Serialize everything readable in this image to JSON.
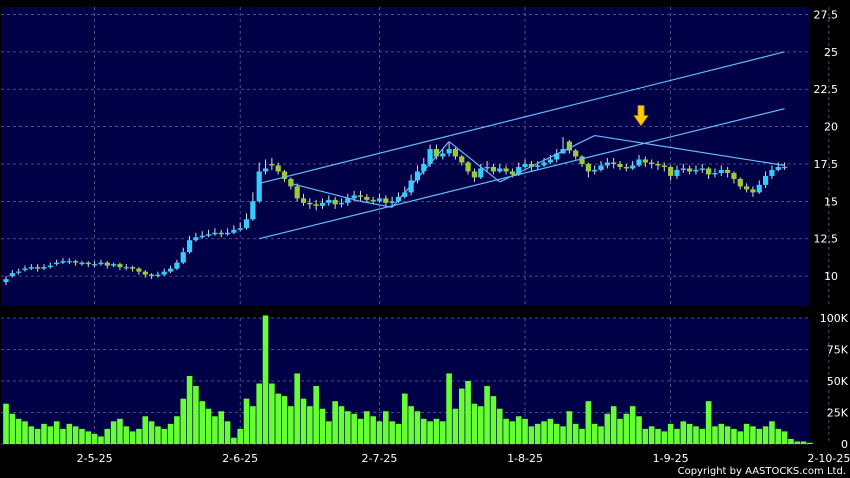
{
  "copyright": "Copyright by AASTOCKS.com Ltd.",
  "colors": {
    "background": "#000000",
    "panel": "#000046",
    "grid": "#5a6a9a",
    "up_candle": "#33ccff",
    "down_candle": "#99cc33",
    "volume": "#66ff33",
    "trendline": "#66bbff",
    "marker": "#ffcc00"
  },
  "chart_data": [
    {
      "type": "candlestick",
      "y_axis_side": "right",
      "ylim": [
        8,
        28
      ],
      "y_ticks": [
        10,
        12.5,
        15,
        17.5,
        20,
        22.5,
        25,
        27.5
      ],
      "y_tick_labels": [
        "10",
        "12.5",
        "15",
        "17.5",
        "20",
        "22.5",
        "25",
        "27.5"
      ],
      "x_tick_labels": [
        "2-5-25",
        "2-6-25",
        "2-7-25",
        "1-8-25",
        "1-9-25",
        "2-10-25"
      ],
      "x_tick_index": [
        14,
        37,
        59,
        82,
        105,
        130
      ],
      "grid": true,
      "closes": [
        9.8,
        10.2,
        10.3,
        10.5,
        10.6,
        10.5,
        10.6,
        10.7,
        10.9,
        11.0,
        11.0,
        10.9,
        10.9,
        10.8,
        10.8,
        10.9,
        10.7,
        10.8,
        10.6,
        10.6,
        10.5,
        10.3,
        10.1,
        10.0,
        10.1,
        10.3,
        10.5,
        10.9,
        11.6,
        12.4,
        12.6,
        12.7,
        12.8,
        12.9,
        12.8,
        12.9,
        13.1,
        13.2,
        13.8,
        15.0,
        17.0,
        17.2,
        17.4,
        17.0,
        16.5,
        16.0,
        15.2,
        14.9,
        14.8,
        14.7,
        14.9,
        15.1,
        14.8,
        14.9,
        15.2,
        15.4,
        15.3,
        15.1,
        15.0,
        15.2,
        14.9,
        15.0,
        15.3,
        15.6,
        16.4,
        17.0,
        17.5,
        18.5,
        18.0,
        18.2,
        18.5,
        18.0,
        17.6,
        17.0,
        16.6,
        17.2,
        17.3,
        17.0,
        17.2,
        17.0,
        16.8,
        17.3,
        17.5,
        17.3,
        17.4,
        17.6,
        17.8,
        18.2,
        18.5,
        18.4,
        18.0,
        17.5,
        17.0,
        17.1,
        17.4,
        17.6,
        17.5,
        17.3,
        17.2,
        17.4,
        17.8,
        17.6,
        17.5,
        17.4,
        17.3,
        16.7,
        17.1,
        17.2,
        17.0,
        17.1,
        17.2,
        16.8,
        16.9,
        17.1,
        16.9,
        16.5,
        16.0,
        15.8,
        15.6,
        16.1,
        16.7,
        17.1,
        17.3,
        17.3
      ],
      "opens": [
        9.6,
        10.0,
        10.3,
        10.4,
        10.5,
        10.6,
        10.5,
        10.6,
        10.8,
        10.9,
        11.0,
        11.0,
        10.8,
        10.9,
        10.8,
        10.8,
        10.9,
        10.7,
        10.8,
        10.6,
        10.6,
        10.5,
        10.3,
        10.1,
        10.0,
        10.1,
        10.3,
        10.5,
        10.9,
        11.6,
        12.4,
        12.6,
        12.7,
        12.8,
        12.9,
        12.8,
        12.9,
        13.1,
        13.2,
        13.8,
        15.0,
        17.0,
        17.5,
        17.4,
        17.0,
        16.5,
        16.0,
        15.2,
        14.9,
        14.8,
        14.7,
        14.9,
        15.1,
        14.8,
        14.9,
        15.2,
        15.4,
        15.3,
        15.1,
        15.0,
        15.2,
        14.9,
        15.0,
        15.3,
        15.6,
        16.4,
        17.0,
        17.5,
        18.5,
        18.0,
        18.2,
        18.5,
        18.0,
        17.6,
        17.0,
        16.6,
        17.2,
        17.3,
        17.0,
        17.2,
        17.0,
        16.8,
        17.3,
        17.5,
        17.3,
        17.4,
        17.6,
        17.8,
        18.2,
        19.0,
        18.4,
        18.0,
        17.5,
        17.0,
        17.1,
        17.4,
        17.6,
        17.5,
        17.3,
        17.2,
        17.4,
        17.8,
        17.6,
        17.5,
        17.4,
        17.3,
        16.7,
        17.1,
        17.2,
        17.0,
        17.1,
        17.2,
        16.8,
        16.9,
        17.1,
        16.9,
        16.5,
        16.0,
        15.8,
        15.6,
        16.1,
        16.7,
        17.1,
        17.3
      ],
      "highs": [
        10.0,
        10.4,
        10.5,
        10.7,
        10.8,
        10.8,
        10.8,
        10.9,
        11.1,
        11.2,
        11.2,
        11.1,
        11.0,
        11.0,
        11.0,
        11.1,
        11.0,
        10.9,
        10.9,
        10.8,
        10.7,
        10.6,
        10.4,
        10.2,
        10.3,
        10.5,
        10.7,
        11.1,
        11.9,
        12.7,
        12.9,
        13.0,
        13.1,
        13.2,
        13.1,
        13.2,
        13.4,
        13.6,
        14.2,
        15.6,
        17.6,
        17.8,
        17.9,
        17.6,
        17.1,
        16.6,
        16.2,
        15.5,
        15.2,
        15.1,
        15.2,
        15.4,
        15.3,
        15.2,
        15.5,
        15.7,
        15.7,
        15.5,
        15.3,
        15.5,
        15.4,
        15.3,
        15.6,
        16.0,
        16.8,
        17.4,
        17.9,
        18.8,
        18.8,
        18.5,
        18.9,
        18.6,
        18.1,
        17.7,
        17.2,
        17.5,
        17.7,
        17.5,
        17.5,
        17.4,
        17.2,
        17.6,
        17.8,
        17.7,
        17.7,
        17.9,
        18.1,
        18.5,
        19.3,
        19.1,
        18.5,
        18.1,
        17.6,
        17.4,
        17.7,
        17.9,
        17.9,
        17.7,
        17.5,
        17.7,
        18.1,
        18.0,
        17.8,
        17.7,
        17.6,
        17.4,
        17.4,
        17.5,
        17.4,
        17.4,
        17.5,
        17.3,
        17.2,
        17.4,
        17.3,
        17.0,
        16.6,
        16.2,
        16.0,
        16.4,
        17.0,
        17.4,
        17.6,
        17.6
      ],
      "lows": [
        9.4,
        9.9,
        10.1,
        10.3,
        10.4,
        10.3,
        10.4,
        10.5,
        10.7,
        10.8,
        10.8,
        10.7,
        10.7,
        10.6,
        10.6,
        10.7,
        10.5,
        10.6,
        10.4,
        10.4,
        10.3,
        10.1,
        9.9,
        9.8,
        9.9,
        10.0,
        10.2,
        10.4,
        10.8,
        11.5,
        12.3,
        12.5,
        12.6,
        12.7,
        12.6,
        12.7,
        12.8,
        13.0,
        13.1,
        13.7,
        14.9,
        16.8,
        17.1,
        16.8,
        16.3,
        15.8,
        15.0,
        14.7,
        14.5,
        14.4,
        14.5,
        14.7,
        14.5,
        14.6,
        14.7,
        15.0,
        15.0,
        14.9,
        14.8,
        14.9,
        14.7,
        14.7,
        14.9,
        15.2,
        15.4,
        16.2,
        16.8,
        17.3,
        17.8,
        17.8,
        18.0,
        17.8,
        17.4,
        16.8,
        16.3,
        16.5,
        17.0,
        16.8,
        16.9,
        16.8,
        16.6,
        16.7,
        17.2,
        17.0,
        17.1,
        17.3,
        17.5,
        17.6,
        18.2,
        18.2,
        17.8,
        17.3,
        16.6,
        16.8,
        17.0,
        17.2,
        17.2,
        17.1,
        17.0,
        17.1,
        17.3,
        17.3,
        17.2,
        17.1,
        17.0,
        16.4,
        16.5,
        16.9,
        16.8,
        16.8,
        16.9,
        16.5,
        16.6,
        16.7,
        16.6,
        16.2,
        15.8,
        15.6,
        15.3,
        15.5,
        15.9,
        16.5,
        17.0,
        17.1
      ],
      "trendlines": [
        {
          "from": [
            40,
            16.2
          ],
          "to": [
            123,
            25.0
          ]
        },
        {
          "from": [
            40,
            12.5
          ],
          "to": [
            123,
            21.2
          ]
        },
        {
          "from": [
            45,
            16.2
          ],
          "to": [
            56,
            15.0
          ]
        },
        {
          "from": [
            56,
            15.0
          ],
          "to": [
            61,
            14.6
          ]
        },
        {
          "from": [
            61,
            14.6
          ],
          "to": [
            70,
            19.0
          ]
        },
        {
          "from": [
            70,
            19.0
          ],
          "to": [
            78,
            16.3
          ]
        },
        {
          "from": [
            78,
            16.3
          ],
          "to": [
            93,
            19.4
          ]
        },
        {
          "from": [
            93,
            19.4
          ],
          "to": [
            123,
            17.4
          ]
        }
      ],
      "marker_index": 100,
      "marker_value": 20.6
    },
    {
      "type": "bar",
      "y_axis_side": "right",
      "ylim": [
        0,
        100
      ],
      "y_ticks": [
        0,
        25,
        50,
        75,
        100
      ],
      "y_tick_labels": [
        "0",
        "25K",
        "50K",
        "75K",
        "100K"
      ],
      "grid": true,
      "values": [
        32,
        24,
        20,
        18,
        14,
        12,
        16,
        14,
        18,
        12,
        16,
        14,
        12,
        10,
        8,
        6,
        12,
        18,
        20,
        14,
        10,
        12,
        22,
        18,
        14,
        12,
        16,
        22,
        36,
        54,
        46,
        34,
        28,
        22,
        26,
        18,
        5,
        12,
        36,
        30,
        48,
        102,
        48,
        40,
        38,
        30,
        56,
        36,
        30,
        46,
        28,
        18,
        34,
        30,
        26,
        24,
        20,
        26,
        22,
        18,
        26,
        18,
        16,
        40,
        30,
        26,
        20,
        18,
        20,
        18,
        56,
        28,
        44,
        50,
        32,
        30,
        46,
        38,
        28,
        20,
        18,
        22,
        20,
        14,
        16,
        18,
        20,
        16,
        14,
        26,
        16,
        12,
        34,
        16,
        14,
        24,
        30,
        20,
        24,
        30,
        22,
        12,
        14,
        12,
        10,
        16,
        12,
        18,
        16,
        14,
        12,
        34,
        14,
        16,
        14,
        12,
        10,
        16,
        14,
        12,
        14,
        18,
        12,
        10,
        4,
        2,
        2,
        1
      ]
    }
  ]
}
